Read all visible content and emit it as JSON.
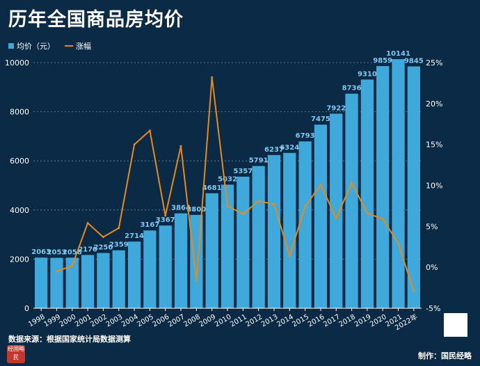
{
  "header": {
    "title": "历年全国商品房均价"
  },
  "legend": {
    "bar_label": "均价（元）",
    "line_label": "涨幅"
  },
  "footer": {
    "source": "数据来源：根据国家统计局数据测算",
    "maker": "制作：国民经略",
    "logo_text": "经国略民"
  },
  "colors": {
    "background": "#0a2a45",
    "bar": "#3fa9dc",
    "line": "#e88a1a",
    "label": "#7fc8f0"
  },
  "chart_data": {
    "type": "bar",
    "categories": [
      "1998",
      "1999",
      "2000",
      "2001",
      "2002",
      "2003",
      "2004",
      "2005",
      "2006",
      "2007",
      "2008",
      "2009",
      "2010",
      "2011",
      "2012",
      "2013",
      "2014",
      "2015",
      "2016",
      "2017",
      "2018",
      "2019",
      "2020",
      "2021",
      "2022年"
    ],
    "series": [
      {
        "name": "均价（元）",
        "type": "bar",
        "axis": "left",
        "values": [
          2063,
          2053,
          2058,
          2170,
          2250,
          2359,
          2714,
          3167,
          3367,
          3864,
          3800,
          4681,
          5032,
          5357,
          5791,
          6237,
          6324,
          6793,
          7475,
          7922,
          8736,
          9310,
          9859,
          10141,
          9845
        ]
      },
      {
        "name": "涨幅",
        "type": "line",
        "axis": "right",
        "values": [
          null,
          -0.5,
          0.2,
          5.4,
          3.7,
          4.8,
          15.0,
          16.7,
          6.3,
          14.8,
          -1.7,
          23.2,
          7.5,
          6.5,
          8.1,
          7.7,
          1.4,
          7.4,
          10.1,
          6.0,
          10.3,
          6.6,
          5.9,
          2.9,
          -2.9
        ]
      }
    ],
    "y_left": {
      "ylim": [
        0,
        10000
      ],
      "ticks": [
        "0",
        "2000",
        "4000",
        "6000",
        "8000",
        "10000"
      ]
    },
    "y_right": {
      "ylim": [
        -5,
        25
      ],
      "ticks": [
        "-5%",
        "0%",
        "5%",
        "10%",
        "15%",
        "20%",
        "25%"
      ]
    },
    "grid": true,
    "legend_position": "top-left"
  }
}
